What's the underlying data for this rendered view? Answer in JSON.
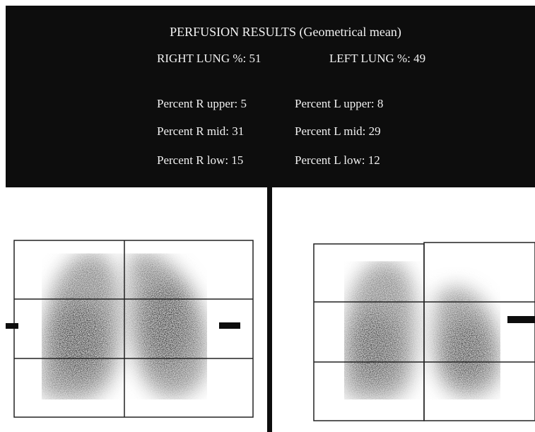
{
  "header": {
    "title": "PERFUSION RESULTS (Geometrical mean)"
  },
  "lungs": [
    {
      "label": "RIGHT LUNG %:",
      "value": 51
    },
    {
      "label": "LEFT LUNG %:",
      "value": 49
    }
  ],
  "regions": {
    "right": [
      {
        "label": "Percent R upper:",
        "value": 5
      },
      {
        "label": "Percent R mid:",
        "value": 31
      },
      {
        "label": "Percent R low:",
        "value": 15
      }
    ],
    "left": [
      {
        "label": "Percent L upper:",
        "value": 8
      },
      {
        "label": "Percent L mid:",
        "value": 29
      },
      {
        "label": "Percent L low:",
        "value": 12
      }
    ]
  }
}
